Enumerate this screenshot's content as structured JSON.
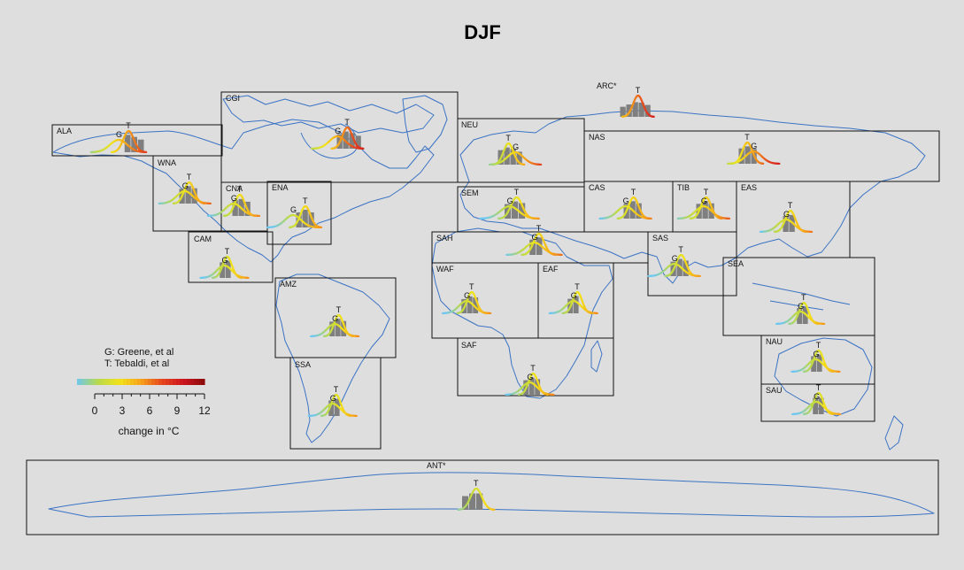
{
  "chart_data": {
    "type": "regional distribution map",
    "title": "DJF",
    "legend": {
      "entries": [
        "G: Greene, et al",
        "T: Tebaldi, et al"
      ],
      "colorbar_ticks": [
        "0",
        "3",
        "6",
        "9",
        "12"
      ],
      "colorbar_label": "change in °C",
      "colorbar_range": [
        -1,
        13
      ],
      "placement": "lower-left"
    },
    "colors": {
      "background": "#dedede",
      "coastline": "#3b73c4",
      "box": "#111111",
      "histogram": "#7f7f7f",
      "ramp": [
        "#6ec8ee",
        "#b8d94a",
        "#f2e21a",
        "#f6a21a",
        "#e6461e",
        "#cc1420",
        "#8a0a0a"
      ]
    },
    "regions": [
      {
        "name": "ALA",
        "G": 4.6,
        "T": 6.1,
        "hist": [
          6,
          7,
          8
        ]
      },
      {
        "name": "CGI",
        "G": 5.6,
        "T": 7.2,
        "hist": [
          6,
          7,
          8,
          9
        ]
      },
      {
        "name": "ARC*",
        "G": null,
        "T": 7.4,
        "hist": [
          5,
          6,
          7,
          8,
          9
        ]
      },
      {
        "name": "NEU",
        "G": 4.3,
        "T": 3.2,
        "hist": [
          2,
          3,
          4,
          5
        ]
      },
      {
        "name": "NAS",
        "G": 5.9,
        "T": 4.9,
        "hist": [
          4,
          5,
          6
        ]
      },
      {
        "name": "WNA",
        "G": 3.4,
        "T": 4.1,
        "hist": [
          3,
          4,
          5
        ]
      },
      {
        "name": "CNA",
        "G": 2.7,
        "T": 3.7,
        "hist": [
          3,
          4,
          5
        ]
      },
      {
        "name": "ENA",
        "G": 2.0,
        "T": 4.0,
        "hist": [
          3,
          4,
          5
        ]
      },
      {
        "name": "SEM",
        "G": 2.2,
        "T": 3.2,
        "hist": [
          2,
          3,
          4
        ]
      },
      {
        "name": "CAS",
        "G": 2.8,
        "T": 4.1,
        "hist": [
          3,
          4,
          5
        ]
      },
      {
        "name": "TIB",
        "G": 3.7,
        "T": 4.1,
        "hist": [
          3,
          4,
          5
        ]
      },
      {
        "name": "EAS",
        "G": 3.0,
        "T": 3.7,
        "hist": [
          3,
          4
        ]
      },
      {
        "name": "SAH",
        "G": 3.2,
        "T": 3.9,
        "hist": [
          3,
          4
        ]
      },
      {
        "name": "SAS",
        "G": 2.1,
        "T": 3.2,
        "hist": [
          2,
          3,
          4
        ]
      },
      {
        "name": "CAM",
        "G": 2.3,
        "T": 2.8,
        "hist": [
          2,
          3
        ]
      },
      {
        "name": "WAF",
        "G": 2.4,
        "T": 3.3,
        "hist": [
          2,
          3,
          4
        ]
      },
      {
        "name": "EAF",
        "G": 2.5,
        "T": 3.2,
        "hist": [
          2,
          3
        ]
      },
      {
        "name": "SEA",
        "G": 2.1,
        "T": 2.7,
        "hist": [
          2,
          3
        ]
      },
      {
        "name": "AMZ",
        "G": 2.4,
        "T": 3.1,
        "hist": [
          2,
          3,
          4
        ]
      },
      {
        "name": "SAF",
        "G": 2.6,
        "T": 3.2,
        "hist": [
          2,
          3,
          4
        ]
      },
      {
        "name": "NAU",
        "G": 2.3,
        "T": 2.8,
        "hist": [
          2,
          3
        ]
      },
      {
        "name": "SAU",
        "G": 2.1,
        "T": 2.5,
        "hist": [
          2,
          3
        ]
      },
      {
        "name": "SSA",
        "G": 2.2,
        "T": 2.8,
        "hist": [
          2,
          3
        ]
      },
      {
        "name": "ANT*",
        "G": null,
        "T": 2.5,
        "hist": [
          1,
          2,
          3
        ]
      }
    ]
  }
}
